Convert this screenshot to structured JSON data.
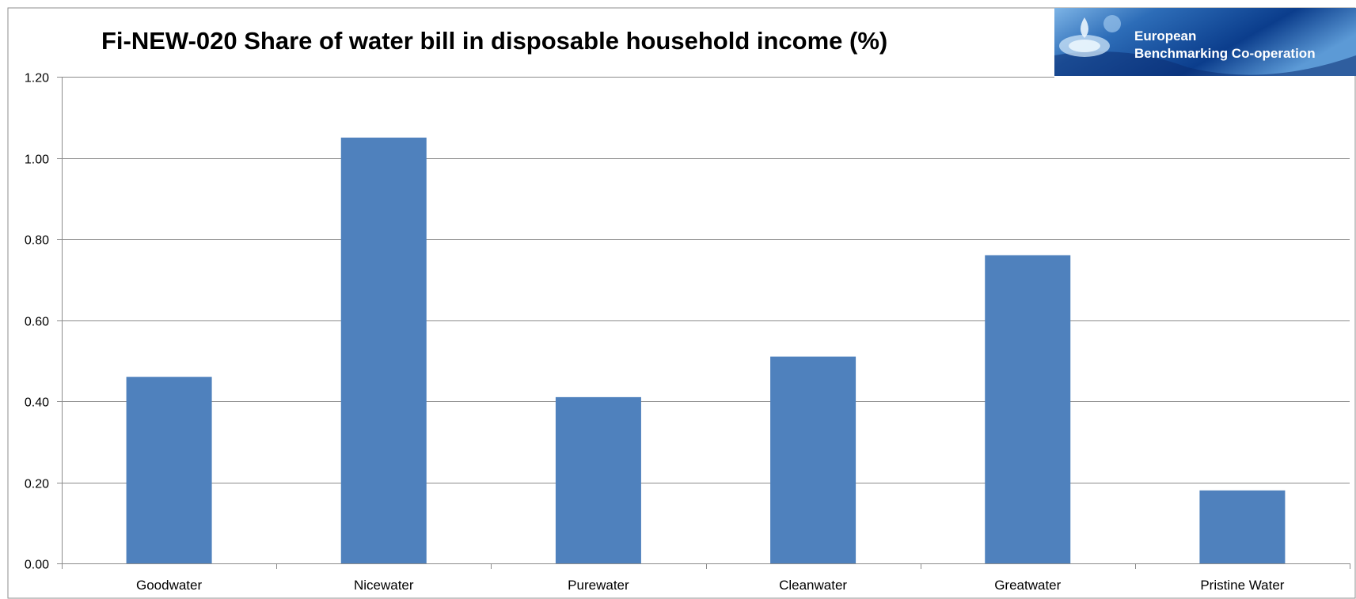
{
  "colors": {
    "bar": "#4F81BD",
    "grid": "#8C8C8C",
    "axis": "#8C8C8C",
    "logo_dark": "#0B2E73",
    "logo_mid": "#2D6DB8",
    "logo_light": "#9CC6EC"
  },
  "logo": {
    "line1": "European",
    "line2": "Benchmarking Co-operation",
    "icon": "water-droplet-splash"
  },
  "chart_data": {
    "type": "bar",
    "title": "Fi-NEW-020 Share of water bill in disposable household income (%)",
    "categories": [
      "Goodwater",
      "Nicewater",
      "Purewater",
      "Cleanwater",
      "Greatwater",
      "Pristine Water"
    ],
    "values": [
      0.46,
      1.05,
      0.41,
      0.51,
      0.76,
      0.18
    ],
    "ylim": [
      0,
      1.2
    ],
    "yticks": [
      "0.00",
      "0.20",
      "0.40",
      "0.60",
      "0.80",
      "1.00",
      "1.20"
    ],
    "grid": true,
    "legend": "none",
    "xlabel": "",
    "ylabel": ""
  }
}
